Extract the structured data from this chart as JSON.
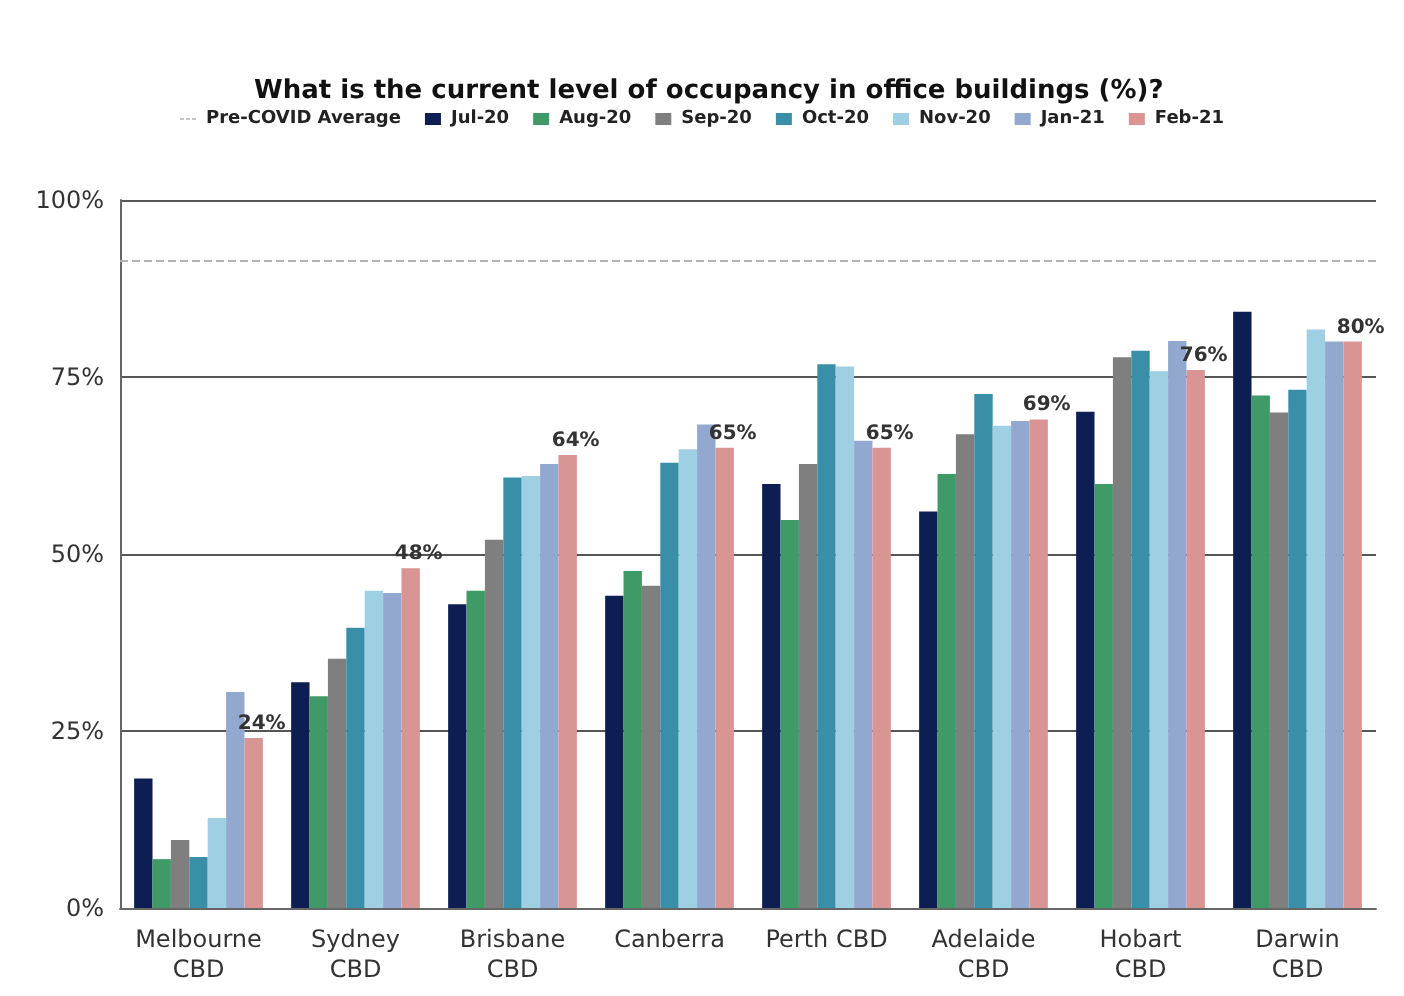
{
  "chart_data": {
    "type": "bar",
    "title": "What is the current level of occupancy in office buildings (%)?",
    "categories": [
      "Melbourne\nCBD",
      "Sydney\nCBD",
      "Brisbane\nCBD",
      "Canberra",
      "Perth CBD",
      "Adelaide\nCBD",
      "Hobart\nCBD",
      "Darwin\nCBD"
    ],
    "series": [
      {
        "name": "Jul-20",
        "color": "#0d1f52",
        "values": [
          18.3,
          31.9,
          42.9,
          44.1,
          59.9,
          56,
          70.1,
          84.2
        ]
      },
      {
        "name": "Aug-20",
        "color": "#3f9a68",
        "values": [
          6.9,
          29.9,
          44.8,
          47.6,
          54.8,
          61.3,
          59.9,
          72.4
        ]
      },
      {
        "name": "Sep-20",
        "color": "#7f7f7f",
        "values": [
          9.6,
          35.2,
          52,
          45.5,
          62.7,
          66.9,
          77.8,
          70
        ]
      },
      {
        "name": "Oct-20",
        "color": "#3a8fa8",
        "values": [
          7.2,
          39.6,
          60.8,
          62.9,
          76.8,
          72.6,
          78.7,
          73.2
        ]
      },
      {
        "name": "Nov-20",
        "color": "#9fcfe2",
        "values": [
          12.7,
          44.8,
          61,
          64.8,
          76.5,
          68.1,
          75.8,
          81.7
        ]
      },
      {
        "name": "Jan-21",
        "color": "#93a8cf",
        "values": [
          30.5,
          44.5,
          62.7,
          68.3,
          66,
          68.8,
          80.1,
          80
        ]
      },
      {
        "name": "Feb-21",
        "color": "#d99494",
        "values": [
          24,
          48,
          64,
          65,
          65,
          69,
          76,
          80
        ],
        "value_labels": [
          "24%",
          "48%",
          "64%",
          "65%",
          "65%",
          "69%",
          "76%",
          "80%"
        ]
      }
    ],
    "ylim": [
      0,
      100
    ],
    "yticks": [
      {
        "value": 0,
        "label": "0%"
      },
      {
        "value": 25,
        "label": "25%"
      },
      {
        "value": 50,
        "label": "50%"
      },
      {
        "value": 75,
        "label": "75%"
      },
      {
        "value": 100,
        "label": "100%"
      }
    ],
    "ref_lines": [
      {
        "axis": "y",
        "value": 91.5,
        "label": "Pre-COVID Average",
        "color": "#b0b0b0",
        "line_style": "dashed"
      }
    ],
    "grid": "y",
    "legend": "top"
  }
}
